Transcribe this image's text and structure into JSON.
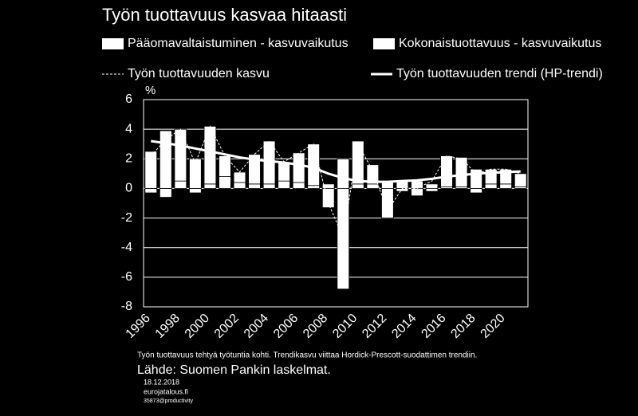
{
  "chart_data": {
    "type": "bar",
    "title": "Työn tuottavuus kasvaa hitaasti",
    "y_unit_label": "%",
    "categories": [
      "1996",
      null,
      "1998",
      null,
      "2000",
      null,
      "2002",
      null,
      "2004",
      null,
      "2006",
      null,
      "2008",
      null,
      "2010",
      null,
      "2012",
      null,
      "2014",
      null,
      "2016",
      null,
      "2018",
      null,
      "2020",
      null
    ],
    "series": [
      {
        "name": "Pääomavaltaistuminen - kasvuvaikutus",
        "type": "bar",
        "color": "#ffffff",
        "values": [
          -0.3,
          -0.6,
          0.5,
          -0.3,
          0.3,
          0.8,
          0.4,
          0.3,
          0.3,
          0.5,
          0.4,
          0.2,
          0.3,
          2.0,
          0.3,
          0.3,
          0.5,
          0.5,
          0.5,
          0.3,
          0.1,
          0.1,
          -0.3,
          0.3,
          0.3,
          0.1
        ]
      },
      {
        "name": "Kokonaistuottavuus - kasvuvaikutus",
        "type": "bar",
        "color": "#ffffff",
        "values": [
          2.5,
          3.9,
          3.5,
          2.0,
          3.9,
          1.4,
          0.7,
          2.0,
          2.9,
          1.3,
          2.0,
          2.8,
          -1.3,
          -6.8,
          2.9,
          1.3,
          -2.0,
          -0.2,
          -0.5,
          -0.2,
          2.1,
          2.0,
          1.3,
          1.0,
          1.0,
          0.9
        ]
      },
      {
        "name": "Työn tuottavuuden kasvu",
        "type": "line",
        "dashed": true,
        "color": "#ffffff",
        "values": [
          2.2,
          3.3,
          4.0,
          1.7,
          4.2,
          2.2,
          1.1,
          2.3,
          3.2,
          1.8,
          2.4,
          3.0,
          -1.0,
          -3.3,
          3.0,
          1.2,
          -1.5,
          0.0,
          0.0,
          0.5,
          2.2,
          2.0,
          1.0,
          1.3,
          1.3,
          1.0
        ]
      },
      {
        "name": "Työn tuottavuuden trendi (HP-trendi)",
        "type": "line",
        "dashed": false,
        "color": "#ffffff",
        "values": [
          3.2,
          3.05,
          2.9,
          2.7,
          2.5,
          2.3,
          2.1,
          1.95,
          1.85,
          1.75,
          1.6,
          1.4,
          1.0,
          0.7,
          0.5,
          0.45,
          0.45,
          0.5,
          0.55,
          0.65,
          0.8,
          0.9,
          1.0,
          1.05,
          1.1,
          1.15
        ]
      }
    ],
    "ylim": [
      -8,
      6
    ],
    "yticks": [
      -8,
      -6,
      -4,
      -2,
      0,
      2,
      4,
      6
    ],
    "grid": true,
    "footnote": "Työn tuottavuus tehtyä työtuntia kohti. Trendikasvu viittaa Hordick-Prescott-suodattimen trendiin.",
    "source": "Lähde: Suomen Pankin laskelmat.",
    "date": "18.12.2018",
    "site": "eurojatalous.fi",
    "code": "35873@productivity"
  }
}
